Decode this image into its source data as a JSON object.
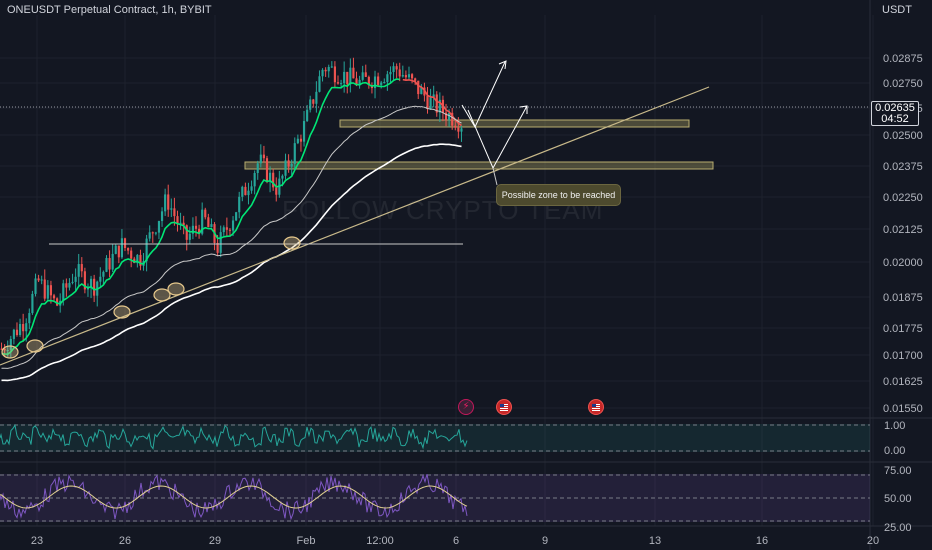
{
  "header": {
    "symbol_title": "ONEUSDT Perpetual Contract, 1h, BYBIT",
    "currency": "USDT"
  },
  "watermark": "FOLLOW CRYPTO TEAM",
  "last_price": {
    "value": "0.02635",
    "countdown": "04:52"
  },
  "annotation": {
    "zone_label": "Possible zone to be reached"
  },
  "events": [
    {
      "icon": "lightning-icon",
      "label": "⚡"
    },
    {
      "icon": "us-flag-icon"
    },
    {
      "icon": "us-flag-icon"
    }
  ],
  "colors": {
    "background": "#131722",
    "up": "#26a69a",
    "down": "#ef5350",
    "ema_fast": "#00e676",
    "ema_slow": "#ffffff",
    "trendline": "#c8b98a",
    "zone_fill": "#4d4a2e",
    "oscillator1": "#26a69a",
    "oscillator2": "#7e57c2",
    "signal": "#e0d090"
  },
  "chart_data": {
    "type": "candlestick",
    "title": "ONEUSDT Perpetual Contract, 1h, BYBIT",
    "y_axis": {
      "unit": "USDT",
      "range": [
        0.0152,
        0.0298
      ],
      "tick_labels": [
        "0.02875",
        "0.02750",
        "0.02625",
        "0.02500",
        "0.02375",
        "0.02250",
        "0.02125",
        "0.02000",
        "0.01875",
        "0.01775",
        "0.01700",
        "0.01625",
        "0.01550"
      ]
    },
    "x_axis": {
      "tick_labels": [
        "23",
        "26",
        "29",
        "Feb",
        "12:00",
        "6",
        "9",
        "13",
        "16",
        "20"
      ]
    },
    "price_path": [
      {
        "t": 0,
        "price": 0.017
      },
      {
        "t": 0.05,
        "price": 0.0182
      },
      {
        "t": 0.08,
        "price": 0.0198
      },
      {
        "t": 0.12,
        "price": 0.0188
      },
      {
        "t": 0.16,
        "price": 0.0202
      },
      {
        "t": 0.2,
        "price": 0.0196
      },
      {
        "t": 0.26,
        "price": 0.0213
      },
      {
        "t": 0.3,
        "price": 0.0207
      },
      {
        "t": 0.36,
        "price": 0.0232
      },
      {
        "t": 0.4,
        "price": 0.0215
      },
      {
        "t": 0.44,
        "price": 0.0224
      },
      {
        "t": 0.47,
        "price": 0.0212
      },
      {
        "t": 0.52,
        "price": 0.0232
      },
      {
        "t": 0.56,
        "price": 0.0248
      },
      {
        "t": 0.6,
        "price": 0.0236
      },
      {
        "t": 0.66,
        "price": 0.0263
      },
      {
        "t": 0.7,
        "price": 0.0287
      },
      {
        "t": 0.78,
        "price": 0.028
      },
      {
        "t": 0.86,
        "price": 0.0286
      },
      {
        "t": 0.94,
        "price": 0.0271
      },
      {
        "t": 1,
        "price": 0.02635
      }
    ],
    "support_resistance_zones": [
      {
        "from": 0.02535,
        "to": 0.0252
      },
      {
        "from": 0.02388,
        "to": 0.02372
      }
    ],
    "horizontal_level": 0.0212,
    "last_price": 0.02635,
    "oscillator_1": {
      "ticks": [
        "1.00",
        "0.00"
      ],
      "range": [
        0,
        1
      ]
    },
    "oscillator_2": {
      "ticks": [
        "75.00",
        "50.00",
        "25.00"
      ],
      "range": [
        25,
        75
      ]
    },
    "annotation": "Possible zone to be reached"
  }
}
